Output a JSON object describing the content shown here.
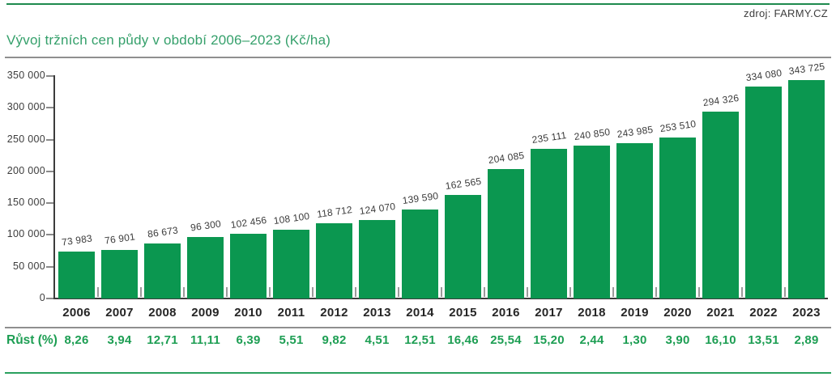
{
  "header": {
    "source_label": "zdroj: FARMY.CZ",
    "title": "Vývoj tržních cen půdy v období 2006–2023 (Kč/ha)"
  },
  "growth_row": {
    "label": "Růst (%)",
    "values": [
      "8,26",
      "3,94",
      "12,71",
      "11,11",
      "6,39",
      "5,51",
      "9,82",
      "4,51",
      "12,51",
      "16,46",
      "25,54",
      "15,20",
      "2,44",
      "1,30",
      "3,90",
      "16,10",
      "13,51",
      "2,89"
    ]
  },
  "chart_data": {
    "type": "bar",
    "title": "Vývoj tržních cen půdy v období 2006–2023 (Kč/ha)",
    "categories": [
      "2006",
      "2007",
      "2008",
      "2009",
      "2010",
      "2011",
      "2012",
      "2013",
      "2014",
      "2015",
      "2016",
      "2017",
      "2018",
      "2019",
      "2020",
      "2021",
      "2022",
      "2023"
    ],
    "values": [
      73983,
      76901,
      86673,
      96300,
      102456,
      108100,
      118712,
      124070,
      139590,
      162565,
      204085,
      235111,
      240850,
      243985,
      253510,
      294326,
      334080,
      343725
    ],
    "value_labels": [
      "73 983",
      "76 901",
      "86 673",
      "96 300",
      "102 456",
      "108 100",
      "118 712",
      "124 070",
      "139 590",
      "162 565",
      "204 085",
      "235 111",
      "240 850",
      "243 985",
      "253 510",
      "294 326",
      "334 080",
      "343 725"
    ],
    "xlabel": "",
    "ylabel": "",
    "ylim": [
      0,
      350000
    ],
    "ytick_interval": 50000,
    "ytick_labels": [
      "0",
      "50 000",
      "100 000",
      "150 000",
      "200 000",
      "250 000",
      "300 000",
      "350 000"
    ],
    "grid": "off",
    "legend": "none",
    "growth_percent": [
      "8,26",
      "3,94",
      "12,71",
      "11,11",
      "6,39",
      "5,51",
      "9,82",
      "4,51",
      "12,51",
      "16,46",
      "25,54",
      "15,20",
      "2,44",
      "1,30",
      "3,90",
      "16,10",
      "13,51",
      "2,89"
    ]
  },
  "colors": {
    "bar_green": "#0b9750",
    "title_green": "#35a06b",
    "growth_green": "#1d9e53",
    "top_rule_green": "#1e8a4e",
    "bottom_rule_green": "#2aa05e",
    "gray_rule": "#8f8f8f",
    "axis_dark": "#3c3c3c"
  }
}
